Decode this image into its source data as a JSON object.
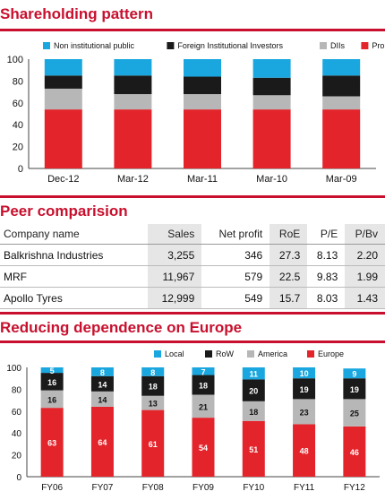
{
  "section1": {
    "title": "Shareholding pattern"
  },
  "section2": {
    "title": "Peer comparision"
  },
  "section3": {
    "title": "Reducing dependence on Europe"
  },
  "colors": {
    "accent": "#c8102e",
    "cyan": "#1aa7e0",
    "black": "#1a1a1a",
    "grey": "#b7b7b7",
    "red": "#e3242b"
  },
  "peer_table": {
    "headers": [
      "Company name",
      "Sales",
      "Net profit",
      "RoE",
      "P/E",
      "P/Bv"
    ],
    "rows": [
      [
        "Balkrishna Industries",
        "3,255",
        "346",
        "27.3",
        "8.13",
        "2.20"
      ],
      [
        "MRF",
        "11,967",
        "579",
        "22.5",
        "9.83",
        "1.99"
      ],
      [
        "Apollo Tyres",
        "12,999",
        "549",
        "15.7",
        "8.03",
        "1.43"
      ]
    ]
  },
  "chart_data": [
    {
      "type": "bar",
      "stacked": true,
      "title": "Shareholding pattern",
      "categories": [
        "Dec-12",
        "Mar-12",
        "Mar-11",
        "Mar-10",
        "Mar-09"
      ],
      "series": [
        {
          "name": "Promoter",
          "color": "#e3242b",
          "values": [
            54,
            54,
            54,
            54,
            54
          ]
        },
        {
          "name": "DIIs",
          "color": "#b7b7b7",
          "values": [
            19,
            14,
            14,
            13,
            12
          ]
        },
        {
          "name": "Foreign Institutional Investors",
          "color": "#1a1a1a",
          "values": [
            12,
            17,
            16,
            16,
            19
          ]
        },
        {
          "name": "Non institutional public",
          "color": "#1aa7e0",
          "values": [
            15,
            15,
            16,
            17,
            15
          ]
        }
      ],
      "legend_order": [
        "Non institutional public",
        "Foreign Institutional Investors",
        "DIIs",
        "Promoter"
      ],
      "yticks": [
        0,
        20,
        40,
        60,
        80,
        100
      ],
      "ylim": [
        0,
        100
      ],
      "legend": "top",
      "grid": false
    },
    {
      "type": "bar",
      "stacked": true,
      "title": "Reducing dependence on Europe",
      "categories": [
        "FY06",
        "FY07",
        "FY08",
        "FY09",
        "FY10",
        "FY11",
        "FY12"
      ],
      "series": [
        {
          "name": "Europe",
          "color": "#e3242b",
          "values": [
            63,
            64,
            61,
            54,
            51,
            48,
            46
          ]
        },
        {
          "name": "America",
          "color": "#b7b7b7",
          "values": [
            16,
            14,
            13,
            21,
            18,
            23,
            25
          ]
        },
        {
          "name": "RoW",
          "color": "#1a1a1a",
          "values": [
            16,
            14,
            18,
            18,
            20,
            19,
            19
          ]
        },
        {
          "name": "Local",
          "color": "#1aa7e0",
          "values": [
            5,
            8,
            8,
            7,
            11,
            10,
            9
          ]
        }
      ],
      "legend_order": [
        "Local",
        "RoW",
        "America",
        "Europe"
      ],
      "yticks": [
        0,
        20,
        40,
        60,
        80,
        100
      ],
      "ylim": [
        0,
        100
      ],
      "legend": "top",
      "grid": false,
      "data_labels": true
    }
  ]
}
